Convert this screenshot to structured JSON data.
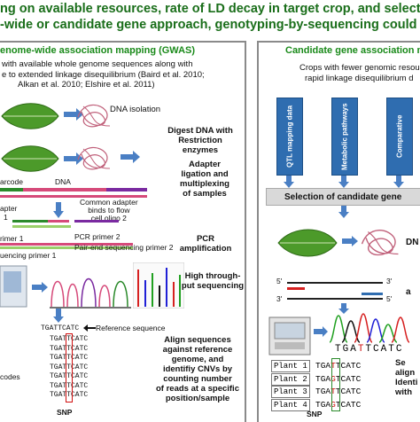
{
  "header": {
    "line1": "ng on available resources, rate of LD decay in target crop, and selection",
    "line2": "-wide or candidate gene approach, genotyping-by-sequencing could be"
  },
  "gwas": {
    "heading": "enome-wide association mapping (GWAS)",
    "desc": [
      "with available whole genome sequences along with",
      "e to extended linkage disequilibrium (Baird et al. 2010;",
      "Alkan et al. 2010; Elshire et al. 2011)"
    ],
    "dna_isolation": "DNA isolation",
    "step_digest": [
      "Digest DNA with",
      "Restriction",
      "enzymes"
    ],
    "step_adapter": [
      "Adapter",
      "ligation and",
      "multiplexing",
      "of samples"
    ],
    "step_pcr": [
      "PCR",
      "amplification"
    ],
    "step_hts": [
      "High through-",
      "put sequencing"
    ],
    "step_align": [
      "Align sequences",
      "against reference",
      "genome, and",
      "identifiy CNVs by",
      "counting number",
      "of reads at a specific",
      "position/sample"
    ],
    "barcode": "arcode",
    "dna": "DNA",
    "apter": "apter",
    "one": "1",
    "common_adapter": [
      "Common adapter",
      "binds to flow",
      "cell oligo 2"
    ],
    "primer1": "rimer 1",
    "pcr_primer2": "PCR primer 2",
    "seq_primer1": "uencing primer 1",
    "pair_end": "Pair-end sequencing primer 2",
    "ref_seq_label": "Reference sequence",
    "ref_seq": "TGATTCATC",
    "reads": [
      "TGATTCATC",
      "TGATTCATC",
      "TGATTCATC",
      "TGATTCATC",
      "TGATTCATC",
      "TGATTCATC",
      "TGATTCATC"
    ],
    "codes": "codes",
    "snp": "SNP"
  },
  "cand": {
    "heading": "Candidate gene association m",
    "desc": [
      "Crops with fewer genomic resour",
      "rapid linkage disequilibrium d"
    ],
    "boxes": [
      "QTL mapping data",
      "Metabolic pathways",
      "Comparative"
    ],
    "selection": "Selection of candidate gene",
    "dna_short": "DN",
    "five": "5'",
    "three": "3'",
    "a_short": "a",
    "seq_pre": "TGA",
    "seq_red": "T",
    "seq_post": "TCATC",
    "plants": [
      {
        "label": "Plant 1",
        "pre": "TGA",
        "snp": "T",
        "post": "TCATC"
      },
      {
        "label": "Plant 2",
        "pre": "TGA",
        "snp": "G",
        "post": "TCATC"
      },
      {
        "label": "Plant 3",
        "pre": "TGA",
        "snp": "T",
        "post": "TCATC"
      },
      {
        "label": "Plant 4",
        "pre": "TGA",
        "snp": "G",
        "post": "TCATC"
      }
    ],
    "snp": "SNP",
    "side": [
      "Se",
      "align",
      "Identi",
      "with"
    ]
  },
  "colors": {
    "title": "#1a6e1a",
    "heading": "#1a8a1a",
    "arrow": "#4a7fc4",
    "box": "#2f6db0"
  }
}
